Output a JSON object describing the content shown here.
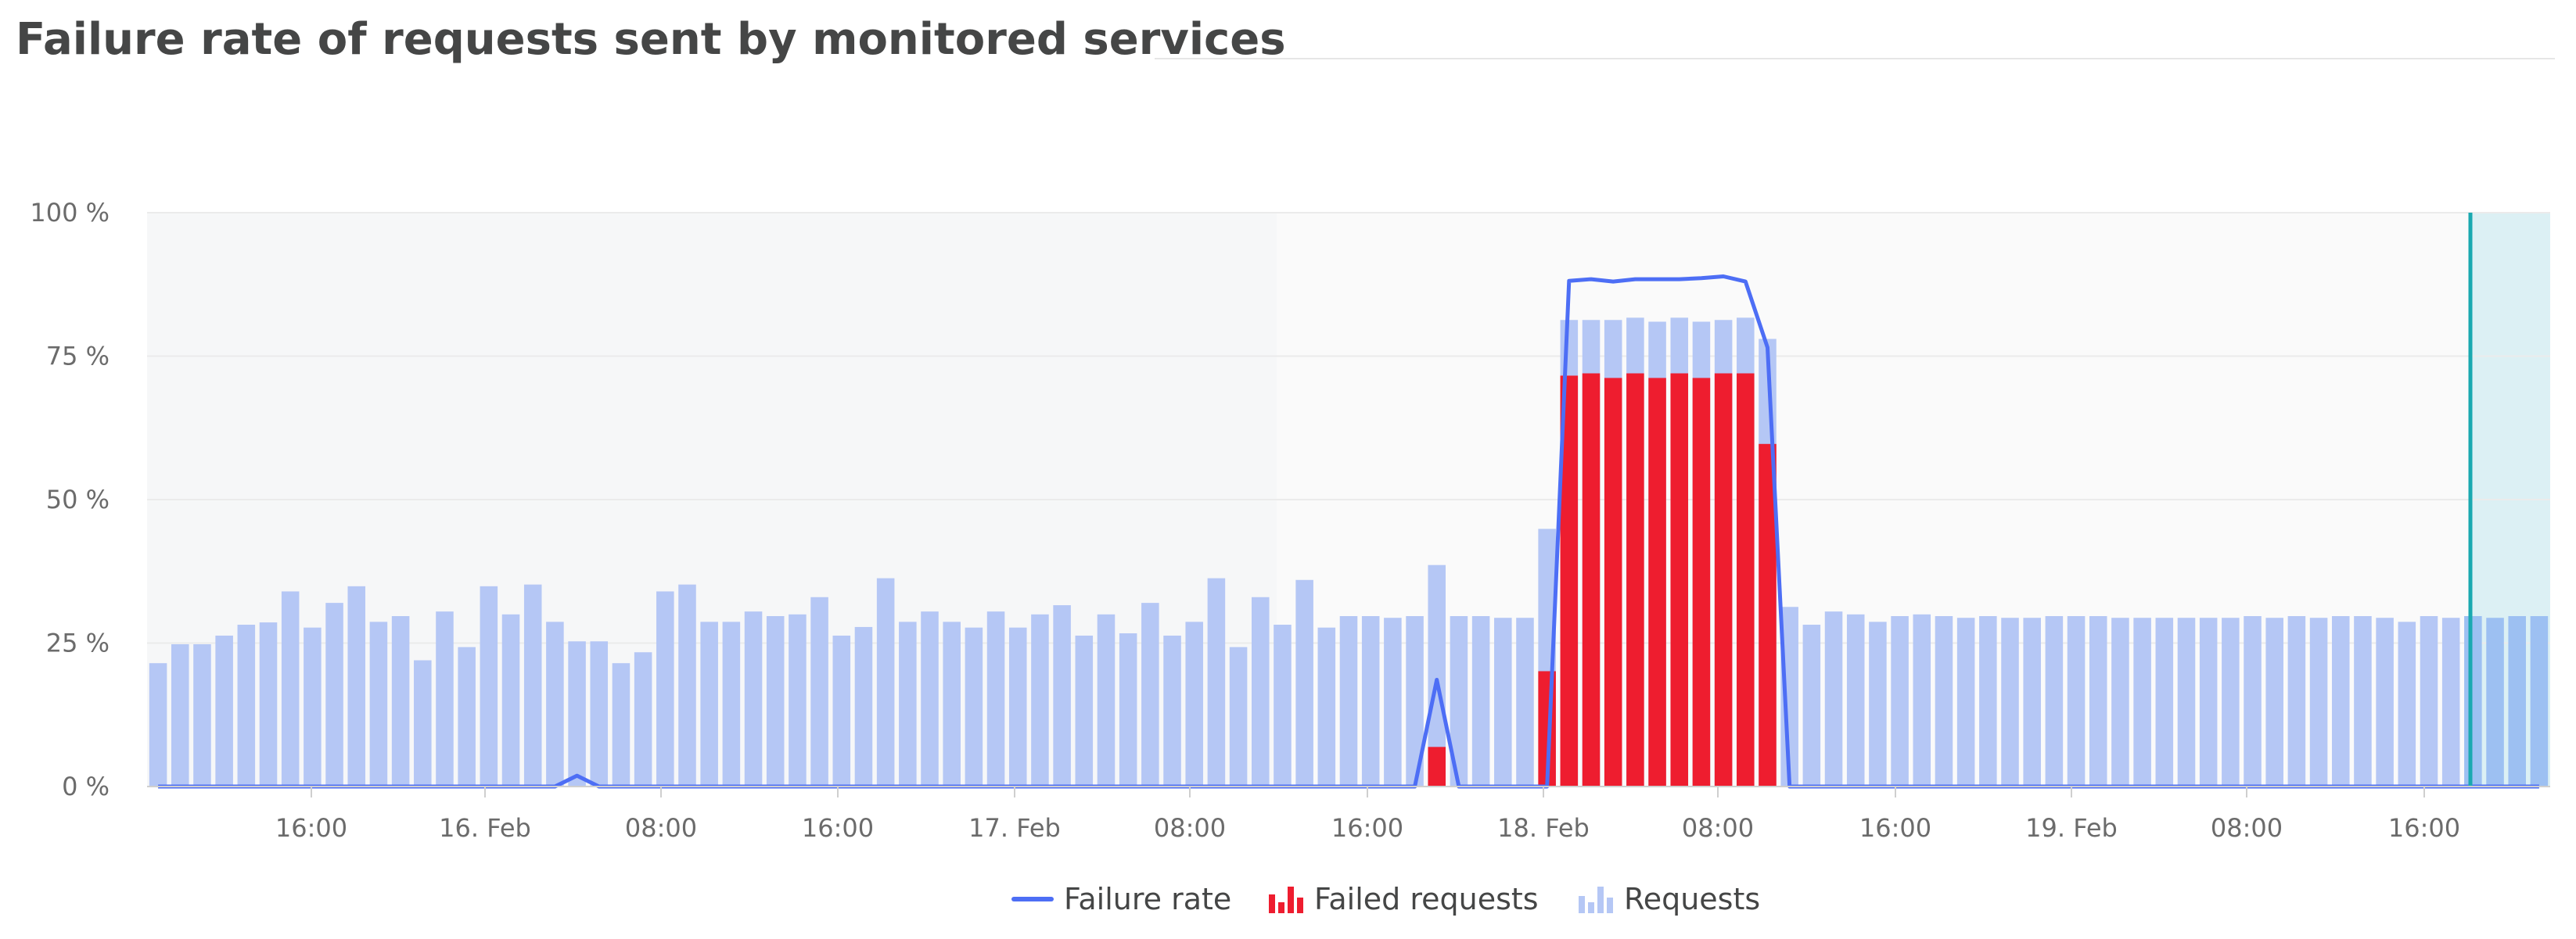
{
  "title": "Failure rate of requests sent by monitored services",
  "chart_data": {
    "type": "bar",
    "ylim": [
      0,
      100
    ],
    "y_ticks": [
      "0 %",
      "25 %",
      "50 %",
      "75 %",
      "100 %"
    ],
    "x_ticks": [
      "16:00",
      "16. Feb",
      "08:00",
      "16:00",
      "17. Feb",
      "08:00",
      "16:00",
      "18. Feb",
      "08:00",
      "16:00",
      "19. Feb",
      "08:00",
      "16:00"
    ],
    "series": [
      {
        "name": "Requests",
        "color": "#b5c7f5",
        "values": [
          21.5,
          24.8,
          24.8,
          26.3,
          28.2,
          28.6,
          34.0,
          27.7,
          32.0,
          34.9,
          28.7,
          29.7,
          22.0,
          30.5,
          24.3,
          34.9,
          30.0,
          35.2,
          28.7,
          25.3,
          25.3,
          21.5,
          23.4,
          34.0,
          35.2,
          28.7,
          28.7,
          30.5,
          29.7,
          30.0,
          33.0,
          26.3,
          27.8,
          36.3,
          28.7,
          30.5,
          28.7,
          27.7,
          30.5,
          27.7,
          30.0,
          31.6,
          26.3,
          30.0,
          26.7,
          32.0,
          26.3,
          28.7,
          36.3,
          24.3,
          33.0,
          28.2,
          36.0,
          27.7,
          29.7,
          29.7,
          29.4,
          29.7,
          38.6,
          29.7,
          29.7,
          29.4,
          29.4,
          44.9,
          81.3,
          81.3,
          81.3,
          81.7,
          81.0,
          81.7,
          81.0,
          81.3,
          81.7,
          78.0,
          31.3,
          28.2,
          30.5,
          30.0,
          28.7,
          29.7,
          30.0,
          29.7,
          29.4,
          29.7,
          29.4,
          29.4,
          29.7,
          29.7,
          29.7,
          29.4,
          29.4,
          29.4,
          29.4,
          29.4,
          29.4,
          29.7,
          29.4,
          29.7,
          29.4,
          29.7,
          29.7,
          29.4,
          28.7,
          29.7,
          29.4,
          29.7,
          29.4,
          29.7,
          29.7
        ]
      },
      {
        "name": "Failed requests",
        "color": "#ee1d2f",
        "values": [
          0,
          0,
          0,
          0,
          0,
          0,
          0,
          0,
          0,
          0,
          0,
          0,
          0,
          0,
          0,
          0,
          0,
          0,
          0,
          0,
          0,
          0,
          0,
          0,
          0,
          0,
          0,
          0,
          0,
          0,
          0,
          0,
          0,
          0,
          0,
          0,
          0,
          0,
          0,
          0,
          0,
          0,
          0,
          0,
          0,
          0,
          0,
          0,
          0,
          0,
          0,
          0,
          0,
          0,
          0,
          0,
          0,
          0,
          6.9,
          0,
          0,
          0,
          0,
          20.1,
          71.6,
          72.0,
          71.2,
          72.0,
          71.2,
          72.0,
          71.2,
          72.0,
          72.0,
          59.7,
          0,
          0,
          0,
          0,
          0,
          0,
          0,
          0,
          0,
          0,
          0,
          0,
          0,
          0,
          0,
          0,
          0,
          0,
          0,
          0,
          0,
          0,
          0,
          0,
          0,
          0,
          0,
          0,
          0,
          0,
          0,
          0,
          0,
          0,
          0
        ]
      },
      {
        "name": "Failure rate",
        "color": "#4d6ef5",
        "values": [
          0,
          0,
          0,
          0,
          0,
          0,
          0,
          0,
          0,
          0,
          0,
          0,
          0,
          0,
          0,
          0,
          0,
          0,
          0,
          1.9,
          0,
          0,
          0,
          0,
          0,
          0,
          0,
          0,
          0,
          0,
          0,
          0,
          0,
          0,
          0,
          0,
          0,
          0,
          0,
          0,
          0,
          0,
          0,
          0,
          0,
          0,
          0,
          0,
          0,
          0,
          0,
          0,
          0,
          0,
          0,
          0,
          0,
          0,
          18.6,
          0,
          0,
          0,
          0,
          0,
          88.1,
          88.4,
          88.0,
          88.4,
          88.4,
          88.4,
          88.6,
          88.9,
          88.0,
          76.5,
          0,
          0,
          0,
          0,
          0,
          0,
          0,
          0,
          0,
          0,
          0,
          0,
          0,
          0,
          0,
          0,
          0,
          0,
          0,
          0,
          0,
          0,
          0,
          0,
          0,
          0,
          0,
          0,
          0,
          0,
          0,
          0,
          0,
          0,
          0
        ]
      }
    ],
    "legend": [
      "Failure rate",
      "Failed requests",
      "Requests"
    ],
    "legend_position": "bottom-center",
    "grid": true,
    "colors": {
      "requests": "#b5c7f5",
      "requests_highlight": "#9dc0f2",
      "failed": "#ee1d2f",
      "line": "#4d6ef5",
      "marker": "#1aa9b0",
      "shade_left": "#f6f7f8",
      "shade_right": "#fafafa",
      "shade_highlight": "#dcf0f4"
    }
  }
}
